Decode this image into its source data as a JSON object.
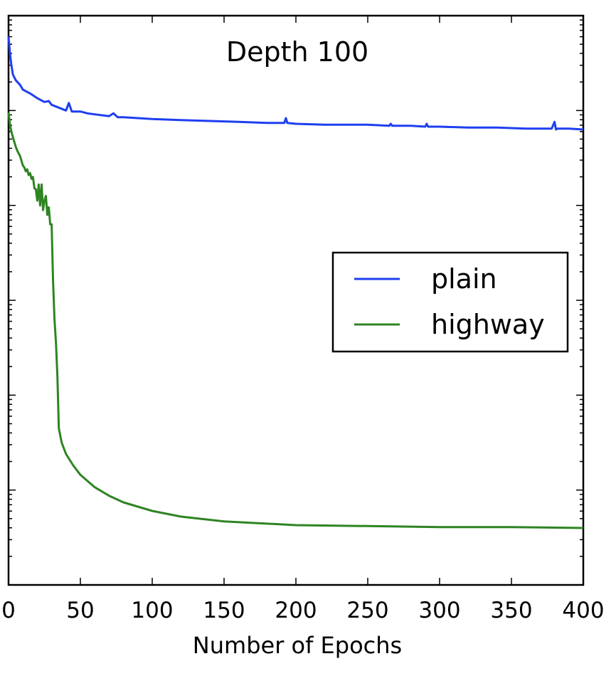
{
  "chart_data": {
    "type": "line",
    "title": "Depth 100",
    "xlabel": "Number of Epochs",
    "ylabel": "",
    "xlim": [
      0,
      400
    ],
    "ylim": [
      0,
      6
    ],
    "y_scale": "log",
    "x_ticks": [
      "0",
      "50",
      "100",
      "150",
      "200",
      "250",
      "300",
      "350",
      "400"
    ],
    "y_tick_labels": [],
    "grid": false,
    "legend": {
      "position": "center-right"
    },
    "series": [
      {
        "name": "plain",
        "color": "#1f3ff0",
        "x": [
          0,
          1,
          2,
          3,
          5,
          8,
          10,
          15,
          20,
          25,
          28,
          30,
          35,
          40,
          42,
          44,
          50,
          55,
          60,
          70,
          73,
          76,
          80,
          90,
          100,
          120,
          140,
          160,
          180,
          192,
          193,
          194,
          200,
          220,
          250,
          265,
          266,
          267,
          280,
          290,
          291,
          292,
          300,
          320,
          340,
          360,
          378,
          380,
          381,
          382,
          385,
          390,
          400
        ],
        "y": [
          5.78,
          5.6,
          5.48,
          5.38,
          5.32,
          5.27,
          5.22,
          5.18,
          5.13,
          5.09,
          5.1,
          5.06,
          5.03,
          5.0,
          5.08,
          4.99,
          4.99,
          4.97,
          4.96,
          4.94,
          4.97,
          4.93,
          4.93,
          4.92,
          4.91,
          4.9,
          4.89,
          4.88,
          4.87,
          4.87,
          4.92,
          4.87,
          4.86,
          4.85,
          4.85,
          4.84,
          4.86,
          4.84,
          4.84,
          4.83,
          4.86,
          4.83,
          4.83,
          4.82,
          4.82,
          4.81,
          4.81,
          4.88,
          4.8,
          4.81,
          4.81,
          4.81,
          4.8
        ]
      },
      {
        "name": "highway",
        "color": "#2e8422",
        "x": [
          0,
          1,
          2,
          3,
          4,
          5,
          6,
          7,
          8,
          9,
          10,
          11,
          12,
          13,
          14,
          15,
          16,
          17,
          18,
          19,
          20,
          21,
          22,
          23,
          24,
          25,
          26,
          27,
          28,
          29,
          30,
          31,
          32,
          33,
          34,
          35,
          37,
          40,
          45,
          50,
          60,
          70,
          80,
          100,
          120,
          150,
          200,
          250,
          300,
          350,
          400
        ],
        "y": [
          4.98,
          4.85,
          4.78,
          4.72,
          4.67,
          4.62,
          4.58,
          4.55,
          4.52,
          4.47,
          4.42,
          4.4,
          4.36,
          4.38,
          4.32,
          4.34,
          4.28,
          4.3,
          4.18,
          4.17,
          4.05,
          4.22,
          4.0,
          4.22,
          3.95,
          4.05,
          4.1,
          3.9,
          3.98,
          3.8,
          3.8,
          3.2,
          2.8,
          2.55,
          2.2,
          1.65,
          1.5,
          1.38,
          1.26,
          1.16,
          1.03,
          0.94,
          0.87,
          0.78,
          0.72,
          0.67,
          0.63,
          0.62,
          0.61,
          0.61,
          0.6
        ]
      }
    ]
  }
}
